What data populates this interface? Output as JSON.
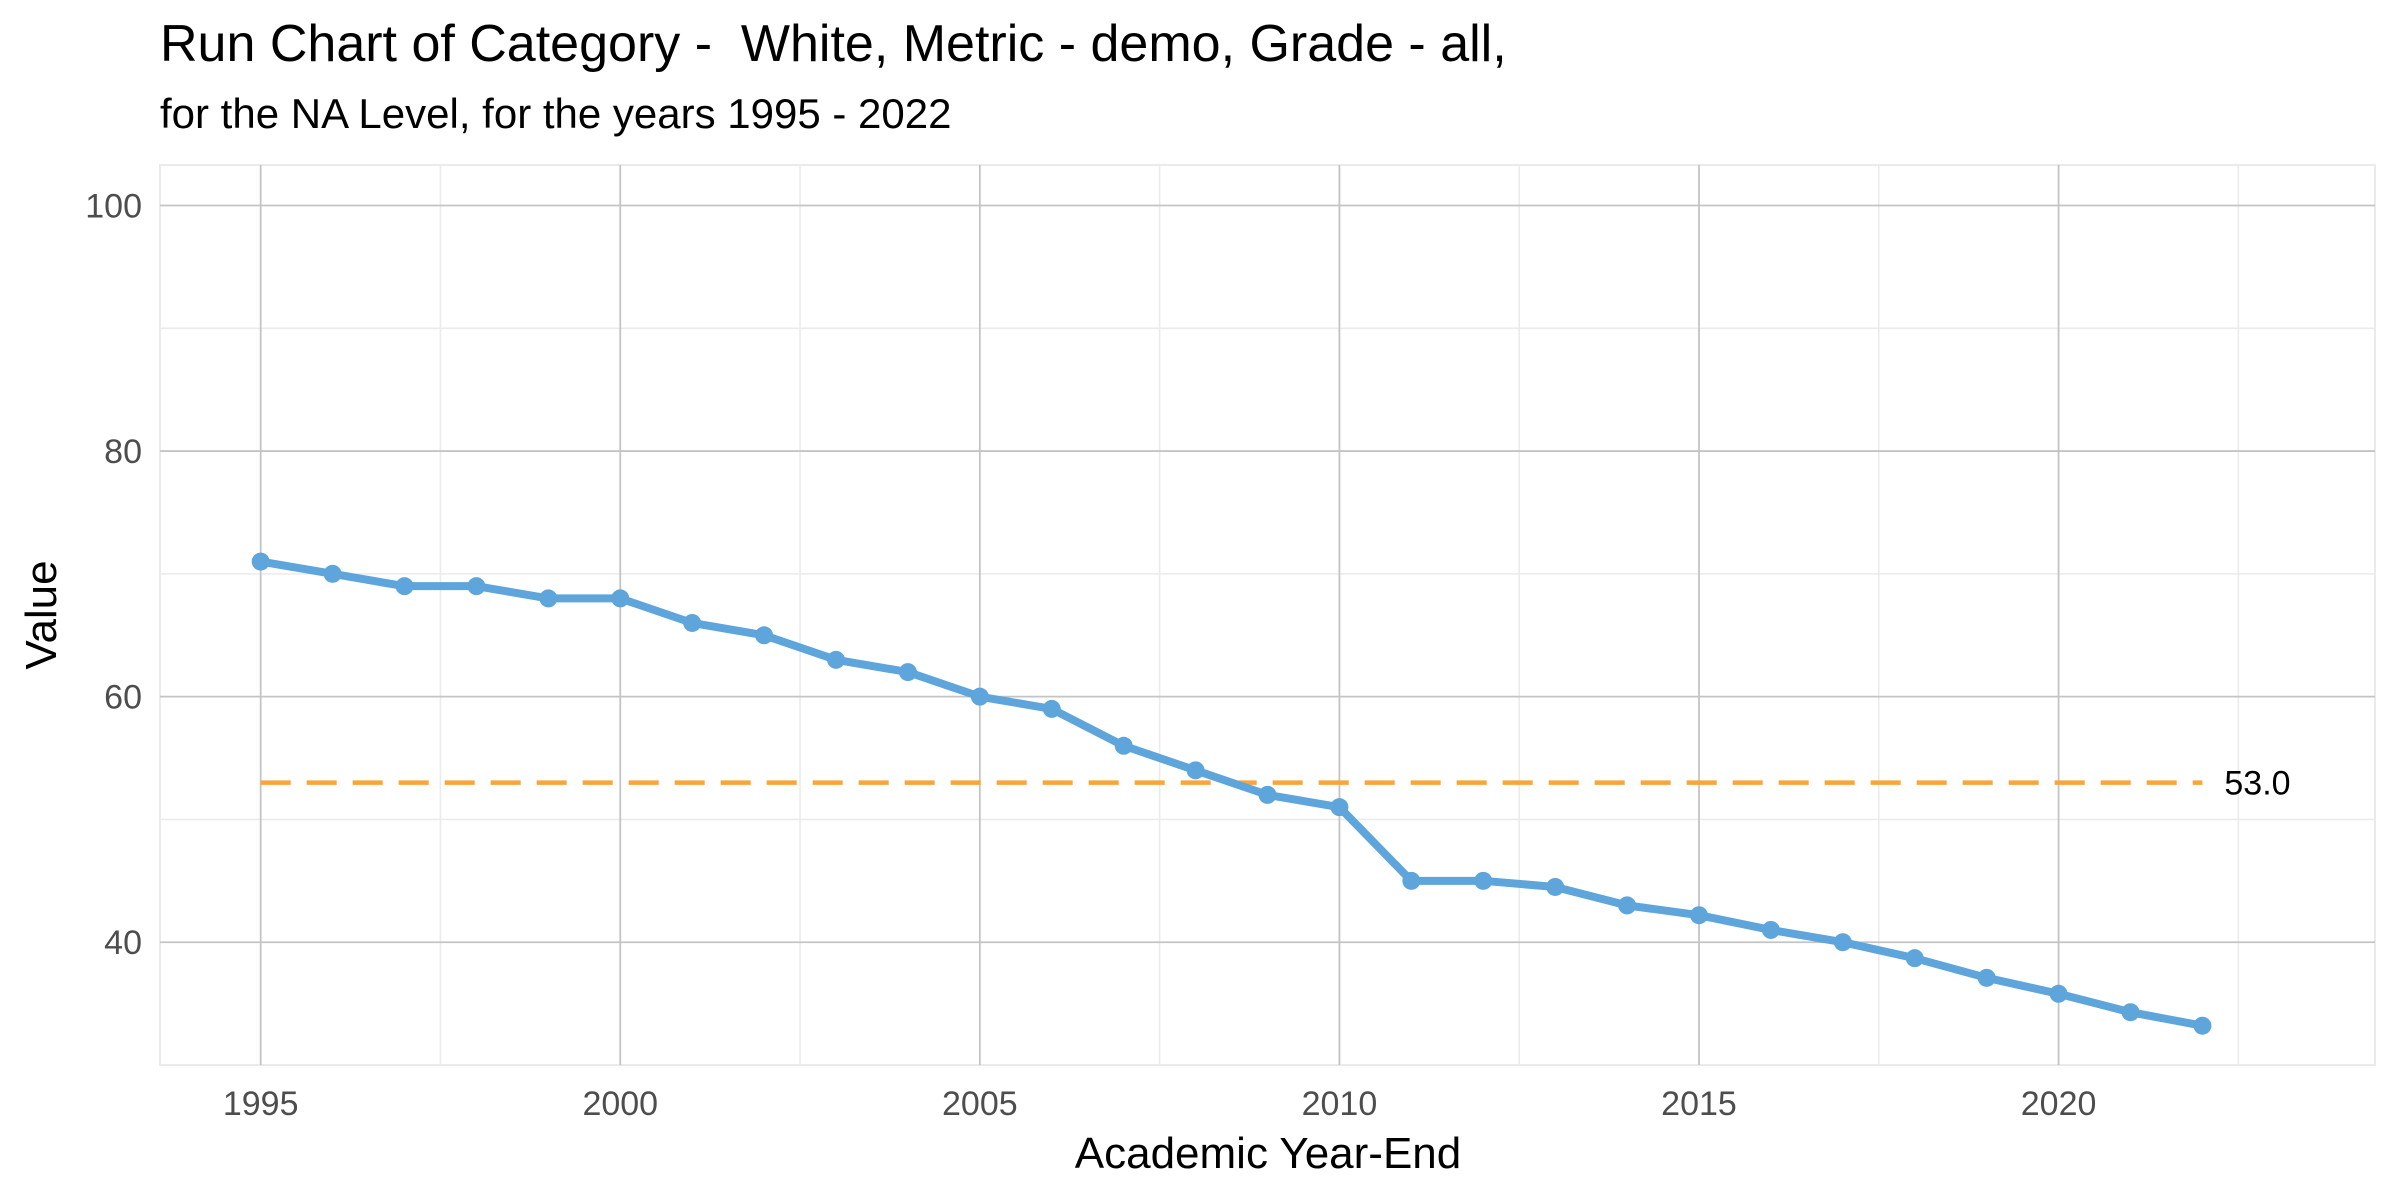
{
  "chart_data": {
    "type": "line",
    "title": "Run Chart of Category -  White, Metric - demo, Grade - all,",
    "subtitle": "for the NA Level, for the years 1995 - 2022",
    "xlabel": "Academic Year-End",
    "ylabel": "Value",
    "xlim": [
      1993.6,
      2024.4
    ],
    "ylim": [
      30,
      103.3
    ],
    "x_ticks": [
      1995,
      2000,
      2005,
      2010,
      2015,
      2020
    ],
    "y_ticks": [
      40,
      60,
      80,
      100
    ],
    "grid": true,
    "legend": "none",
    "series": [
      {
        "x": [
          1995,
          1996,
          1997,
          1998,
          1999,
          2000,
          2001,
          2002,
          2003,
          2004,
          2005,
          2006,
          2007,
          2008,
          2009,
          2010,
          2011,
          2012,
          2013,
          2014,
          2015,
          2016,
          2017,
          2018,
          2019,
          2020,
          2021,
          2022
        ],
        "values": [
          71,
          70,
          69,
          69,
          68,
          68,
          66,
          65,
          63,
          62,
          60,
          59,
          56,
          54,
          52,
          51,
          45,
          45,
          44.5,
          43,
          42.2,
          41,
          40,
          38.7,
          37.1,
          35.8,
          34.3,
          33.2
        ],
        "color": "#5DA5DA"
      }
    ],
    "reference_line": {
      "value": 53.0,
      "label": "53.0",
      "x_range": [
        1995,
        2022
      ],
      "color": "#FAA43A",
      "style": "dashed"
    }
  }
}
